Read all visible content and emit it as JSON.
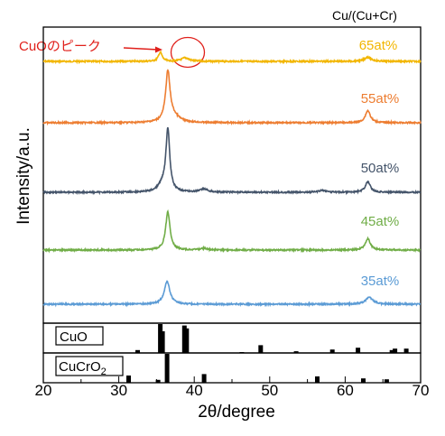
{
  "chart_data": {
    "type": "line",
    "header": "Cu/(Cu+Cr)",
    "xlabel": "2θ/degree",
    "ylabel": "Intensity/a.u.",
    "xlim": [
      20,
      70
    ],
    "xticks": [
      "20",
      "30",
      "40",
      "50",
      "60",
      "70"
    ],
    "series": [
      {
        "name": "65at%",
        "color": "#f2b600",
        "peaks": [
          {
            "x": 35.5,
            "h": 0.25,
            "w": 0.3
          },
          {
            "x": 38.8,
            "h": 0.1,
            "w": 0.6
          },
          {
            "x": 63.0,
            "h": 0.12,
            "w": 0.5
          }
        ]
      },
      {
        "name": "55at%",
        "color": "#ed7d31",
        "peaks": [
          {
            "x": 36.5,
            "h": 1.0,
            "w": 0.35
          },
          {
            "x": 37.2,
            "h": 0.12,
            "w": 1.0
          },
          {
            "x": 63.0,
            "h": 0.25,
            "w": 0.4
          }
        ]
      },
      {
        "name": "50at%",
        "color": "#44546a",
        "peaks": [
          {
            "x": 36.5,
            "h": 1.0,
            "w": 0.3
          },
          {
            "x": 35.8,
            "h": 0.12,
            "w": 0.7
          },
          {
            "x": 41.3,
            "h": 0.05,
            "w": 0.6
          },
          {
            "x": 57.0,
            "h": 0.03,
            "w": 0.6
          },
          {
            "x": 63.0,
            "h": 0.17,
            "w": 0.4
          }
        ]
      },
      {
        "name": "45at%",
        "color": "#70ad47",
        "peaks": [
          {
            "x": 36.5,
            "h": 1.0,
            "w": 0.35
          },
          {
            "x": 41.3,
            "h": 0.04,
            "w": 0.6
          },
          {
            "x": 63.0,
            "h": 0.3,
            "w": 0.4
          }
        ]
      },
      {
        "name": "35at%",
        "color": "#5b9bd5",
        "peaks": [
          {
            "x": 36.4,
            "h": 1.0,
            "w": 0.45
          },
          {
            "x": 63.2,
            "h": 0.3,
            "w": 0.6
          }
        ]
      }
    ],
    "annotation": {
      "text": "CuOのピーク"
    },
    "references": [
      {
        "name": "CuO",
        "lines": [
          {
            "x": 32.5,
            "h": 0.1
          },
          {
            "x": 35.5,
            "h": 1.0
          },
          {
            "x": 35.8,
            "h": 0.75
          },
          {
            "x": 38.7,
            "h": 0.95
          },
          {
            "x": 39.0,
            "h": 0.85
          },
          {
            "x": 46.3,
            "h": 0.03
          },
          {
            "x": 48.8,
            "h": 0.27
          },
          {
            "x": 53.5,
            "h": 0.06
          },
          {
            "x": 58.3,
            "h": 0.12
          },
          {
            "x": 61.7,
            "h": 0.18
          },
          {
            "x": 66.2,
            "h": 0.1
          },
          {
            "x": 66.6,
            "h": 0.15
          },
          {
            "x": 68.1,
            "h": 0.15
          }
        ]
      },
      {
        "name": "CuCrO",
        "name_sub": "2",
        "lines": [
          {
            "x": 31.3,
            "h": 0.25
          },
          {
            "x": 35.2,
            "h": 0.1
          },
          {
            "x": 36.4,
            "h": 1.0
          },
          {
            "x": 41.3,
            "h": 0.3
          },
          {
            "x": 56.3,
            "h": 0.22
          },
          {
            "x": 62.4,
            "h": 0.15
          },
          {
            "x": 65.5,
            "h": 0.12
          }
        ]
      }
    ]
  }
}
